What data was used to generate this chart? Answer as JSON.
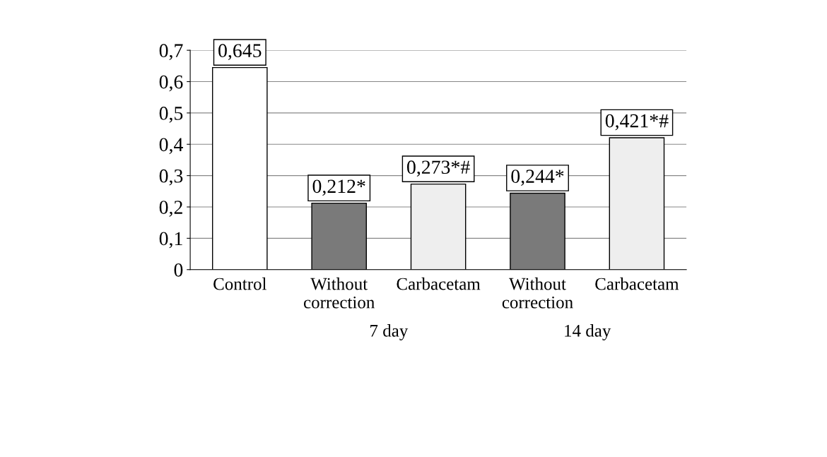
{
  "chart_data": {
    "type": "bar",
    "categories": [
      "Control",
      "Without correction",
      "Carbacetam",
      "Without correction",
      "Carbacetam"
    ],
    "values": [
      0.645,
      0.212,
      0.273,
      0.244,
      0.421
    ],
    "value_labels": [
      "0,645",
      "0,212*",
      "0,273*#",
      "0,244*",
      "0,421*#"
    ],
    "colors": [
      "#ffffff",
      "#7a7a7a",
      "#eeeeee",
      "#7a7a7a",
      "#eeeeee"
    ],
    "ylim": [
      0,
      0.7
    ],
    "yticks": [
      0,
      {
        "value": 0.1,
        "label": "0,1"
      },
      {
        "value": 0.2,
        "label": "0,2"
      },
      {
        "value": 0.3,
        "label": "0,3"
      },
      {
        "value": 0.4,
        "label": "0,4"
      },
      {
        "value": 0.5,
        "label": "0,5"
      },
      {
        "value": 0.6,
        "label": "0,6"
      },
      {
        "value": 0.7,
        "label": "0,7"
      }
    ],
    "annotations": [
      "7 day",
      "14 day"
    ],
    "grid": "y"
  }
}
